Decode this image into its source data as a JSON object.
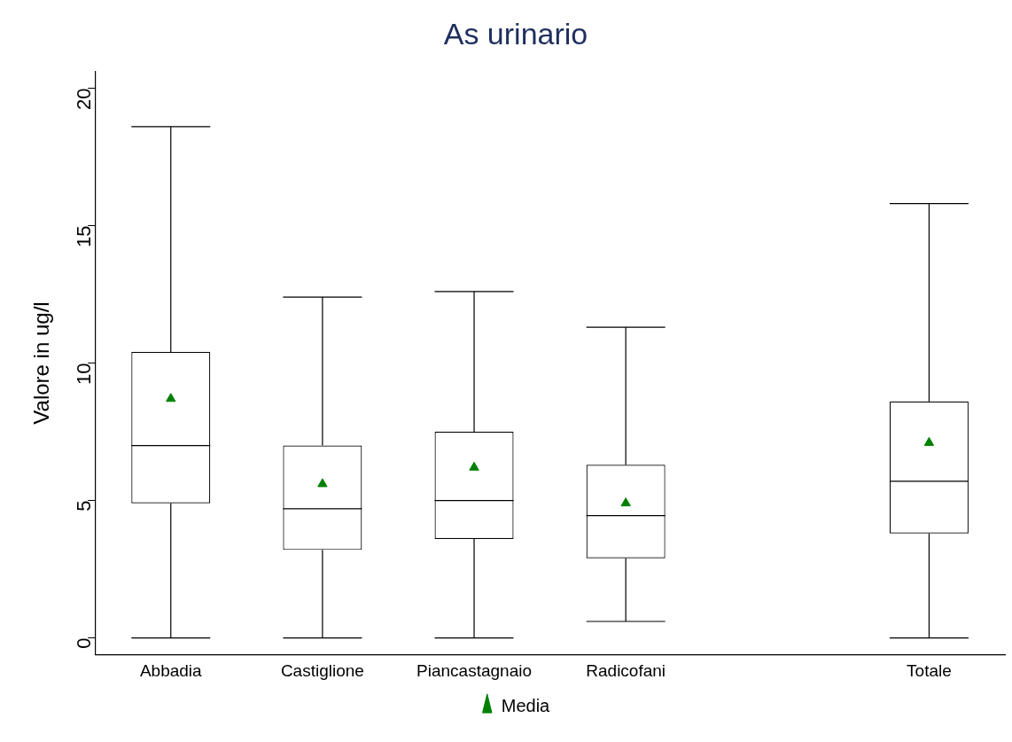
{
  "chart_data": {
    "type": "box",
    "title": "As urinario",
    "ylabel": "Valore in ug/l",
    "categories": [
      "Abbadia",
      "Castiglione",
      "Piancastagnaio",
      "Radicofani",
      null,
      "Totale"
    ],
    "boxes": [
      {
        "low": 0,
        "q1": 4.9,
        "median": 7.0,
        "q3": 10.4,
        "high": 18.6
      },
      {
        "low": 0,
        "q1": 3.2,
        "median": 4.7,
        "q3": 7.0,
        "high": 12.4
      },
      {
        "low": 0,
        "q1": 3.6,
        "median": 5.0,
        "q3": 7.5,
        "high": 12.6
      },
      {
        "low": 0.6,
        "q1": 2.9,
        "median": 4.45,
        "q3": 6.3,
        "high": 11.3
      },
      null,
      {
        "low": 0,
        "q1": 3.8,
        "median": 5.7,
        "q3": 8.6,
        "high": 15.8
      }
    ],
    "series": [
      {
        "name": "Media",
        "type": "scatter",
        "color": "#008000",
        "x": [
          "Abbadia",
          "Castiglione",
          "Piancastagnaio",
          "Radicofani",
          "Totale"
        ],
        "values": [
          8.7,
          5.6,
          6.2,
          4.9,
          7.1
        ]
      }
    ],
    "marker": "triangle",
    "ylim": [
      -0.6,
      20.6
    ],
    "yticks": [
      0,
      5,
      10,
      15,
      20
    ],
    "grid": false,
    "legend": "bottom"
  }
}
